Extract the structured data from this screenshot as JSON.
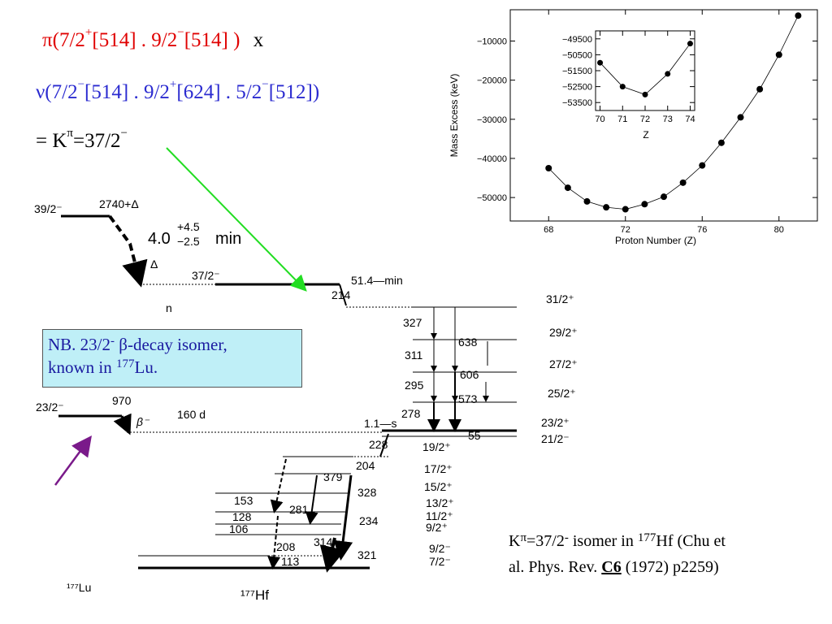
{
  "config": {
    "line1_prefix": "π(7/2",
    "line1_sup1": "+",
    "line1_mid": "[514] . 9/2",
    "line1_sup2": "−",
    "line1_end": "[514] )",
    "line1_x": "x",
    "line2_prefix": "ν(7/2",
    "line2_sup1": "−",
    "line2_mid1": "[514] . 9/2",
    "line2_sup2": "+",
    "line2_mid2": "[624] . 5/2",
    "line2_sup3": "−",
    "line2_end": "[512])",
    "line3_prefix": "= K",
    "line3_sup1": "π",
    "line3_mid": "=37/2",
    "line3_sup2": "−"
  },
  "nb": {
    "line1_a": "NB. 23/2",
    "line1_sup": "-",
    "line1_b": " β-decay isomer,",
    "line2_a": "known in ",
    "line2_sup": "177",
    "line2_b": "Lu."
  },
  "reference": {
    "l1_a": "K",
    "l1_sup1": "π",
    "l1_b": "=37/2",
    "l1_sup2": "-",
    "l1_c": " isomer in ",
    "l1_sup3": "177",
    "l1_d": "Hf (Chu et",
    "l2_a": "al. Phys. Rev. ",
    "l2_vol": "C6",
    "l2_b": " (1972) p2259)"
  },
  "scheme": {
    "lu_levels": {
      "l39": "39/2⁻",
      "e2740": "2740+Δ",
      "halflife_a": "4.0",
      "halflife_up": "+4.5",
      "halflife_dn": "−2.5",
      "halflife_unit": "min",
      "delta": "Δ",
      "l37": "37/2⁻",
      "t514": "51.4—min",
      "e214": "214",
      "n": "n",
      "l23": "23/2⁻",
      "e970": "970",
      "beta": "β⁻",
      "t160": "160 d",
      "t11s": "1.1—s",
      "lu_name": "¹⁷⁷Lu",
      "hf_name": "¹⁷⁷Hf"
    },
    "gammas_right": [
      "327",
      "311",
      "295",
      "278",
      "638",
      "606",
      "573",
      "55",
      "228",
      "204"
    ],
    "gammas_low": [
      "379",
      "328",
      "153",
      "281",
      "128",
      "234",
      "106",
      "208",
      "314",
      "113",
      "321"
    ],
    "spins_right": [
      "31/2⁺",
      "29/2⁺",
      "27/2⁺",
      "25/2⁺",
      "23/2⁺",
      "21/2⁻"
    ],
    "spins_mid": [
      "19/2⁺",
      "17/2⁺",
      "15/2⁺",
      "13/2⁺",
      "11/2⁺",
      "9/2⁺",
      "9/2⁻",
      "7/2⁻"
    ]
  },
  "chart_data": {
    "type": "scatter",
    "xlabel": "Proton Number (Z)",
    "ylabel": "Mass Excess (keV)",
    "xlim": [
      66,
      82
    ],
    "ylim": [
      -56000,
      -2000
    ],
    "xticks": [
      68,
      72,
      76,
      80
    ],
    "yticks": [
      -10000,
      -20000,
      -30000,
      -40000,
      -50000
    ],
    "x": [
      68,
      69,
      70,
      71,
      72,
      73,
      74,
      75,
      76,
      77,
      78,
      79,
      80,
      81
    ],
    "y": [
      -42500,
      -47500,
      -51000,
      -52500,
      -53000,
      -51700,
      -49800,
      -46200,
      -41800,
      -36000,
      -29500,
      -22300,
      -13500,
      -3500
    ],
    "inset": {
      "xlabel": "Z",
      "xlim": [
        69.8,
        74.2
      ],
      "ylim": [
        -54000,
        -49000
      ],
      "xticks": [
        70,
        71,
        72,
        73,
        74
      ],
      "yticks": [
        -49500,
        -50500,
        -51500,
        -52500,
        -53500
      ],
      "x": [
        70,
        71,
        72,
        73,
        74
      ],
      "y": [
        -51000,
        -52500,
        -53000,
        -51700,
        -49800
      ]
    }
  },
  "colors": {
    "red": "#e00000",
    "blue": "#2b2bd0",
    "green": "#22dd22",
    "purple": "#7a1a8a",
    "nb_fill": "#bfeff7"
  }
}
